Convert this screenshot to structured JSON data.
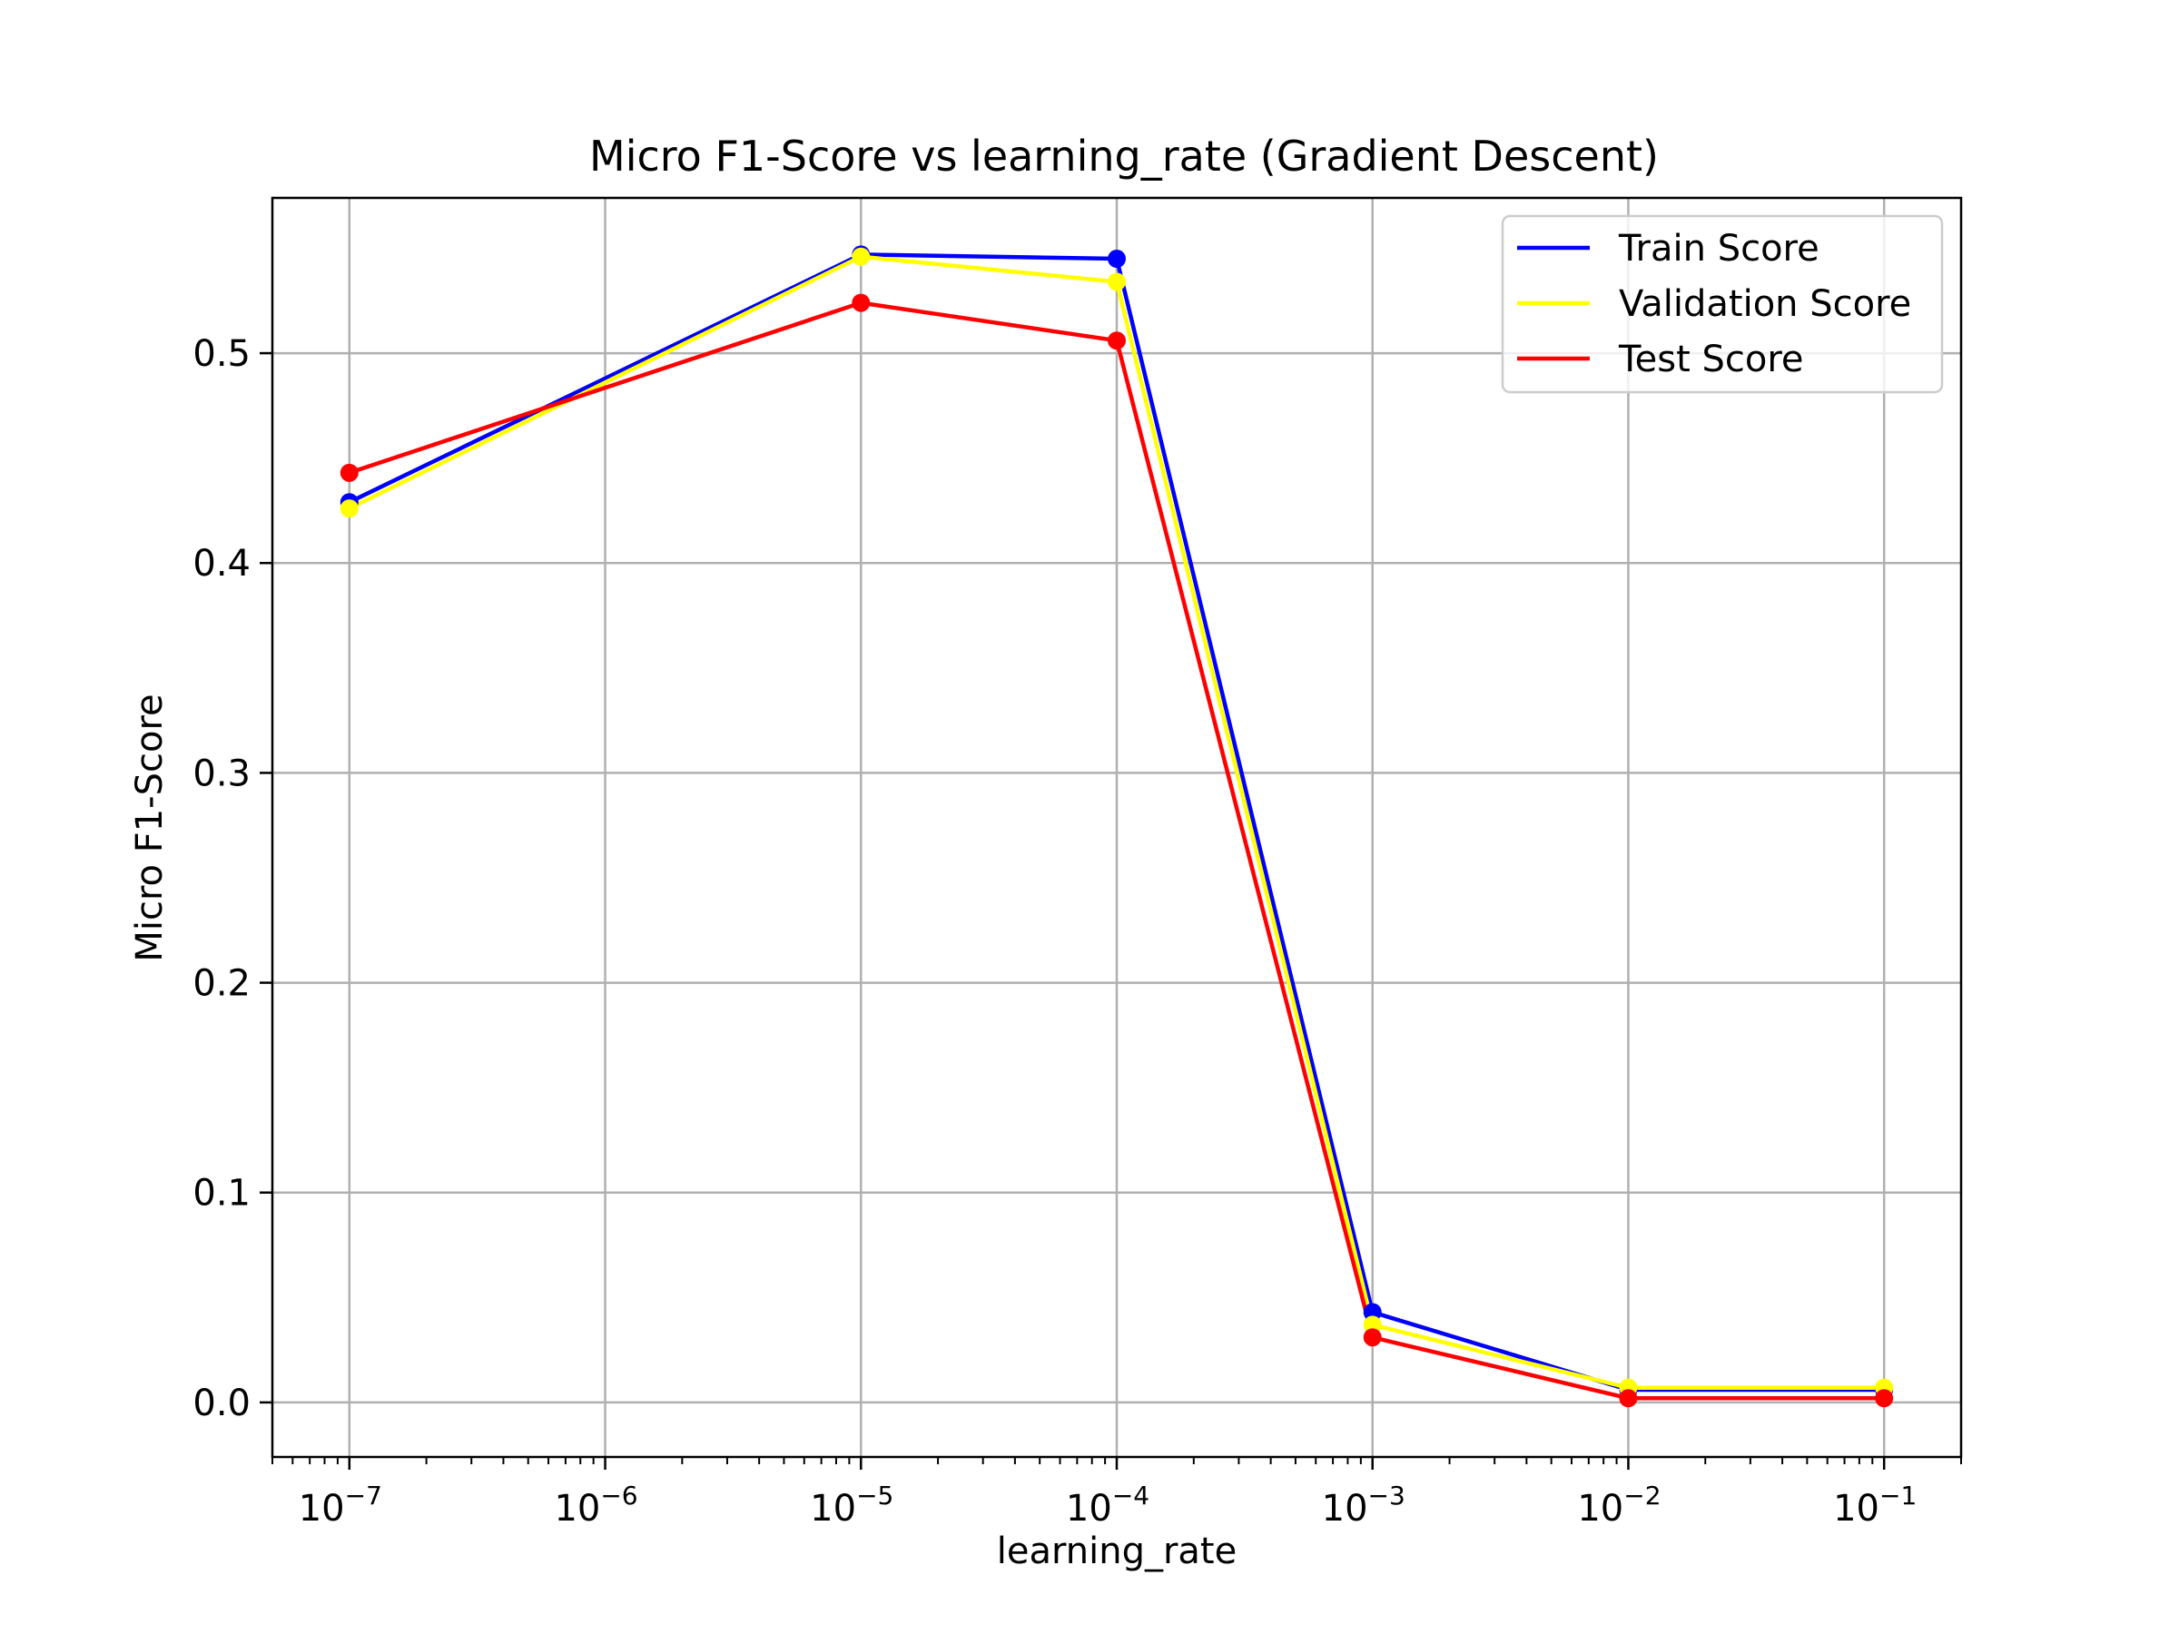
{
  "chart_data": {
    "type": "line",
    "title": "Micro F1-Score vs learning_rate (Gradient Descent)",
    "xlabel": "learning_rate",
    "ylabel": "Micro F1-Score",
    "x_scale": "log",
    "x": [
      1e-07,
      1e-05,
      0.0001,
      0.001,
      0.01,
      0.1
    ],
    "xlim": [
      5e-08,
      0.2
    ],
    "ylim": [
      -0.026,
      0.574
    ],
    "x_ticks": [
      {
        "base": "10",
        "exp": "−7",
        "value": 1e-07
      },
      {
        "base": "10",
        "exp": "−6",
        "value": 1e-06
      },
      {
        "base": "10",
        "exp": "−5",
        "value": 1e-05
      },
      {
        "base": "10",
        "exp": "−4",
        "value": 0.0001
      },
      {
        "base": "10",
        "exp": "−3",
        "value": 0.001
      },
      {
        "base": "10",
        "exp": "−2",
        "value": 0.01
      },
      {
        "base": "10",
        "exp": "−1",
        "value": 0.1
      }
    ],
    "y_ticks": [
      {
        "label": "0.0",
        "value": 0.0
      },
      {
        "label": "0.1",
        "value": 0.1
      },
      {
        "label": "0.2",
        "value": 0.2
      },
      {
        "label": "0.3",
        "value": 0.3
      },
      {
        "label": "0.4",
        "value": 0.4
      },
      {
        "label": "0.5",
        "value": 0.5
      }
    ],
    "grid": true,
    "legend_position": "top-right",
    "series": [
      {
        "name": "Train Score",
        "color": "#0000ff",
        "values": [
          0.429,
          0.547,
          0.545,
          0.043,
          0.006,
          0.006
        ]
      },
      {
        "name": "Validation Score",
        "color": "#ffff00",
        "values": [
          0.426,
          0.546,
          0.534,
          0.037,
          0.007,
          0.007
        ]
      },
      {
        "name": "Test Score",
        "color": "#ff0000",
        "values": [
          0.443,
          0.524,
          0.506,
          0.031,
          0.002,
          0.002
        ]
      }
    ]
  }
}
